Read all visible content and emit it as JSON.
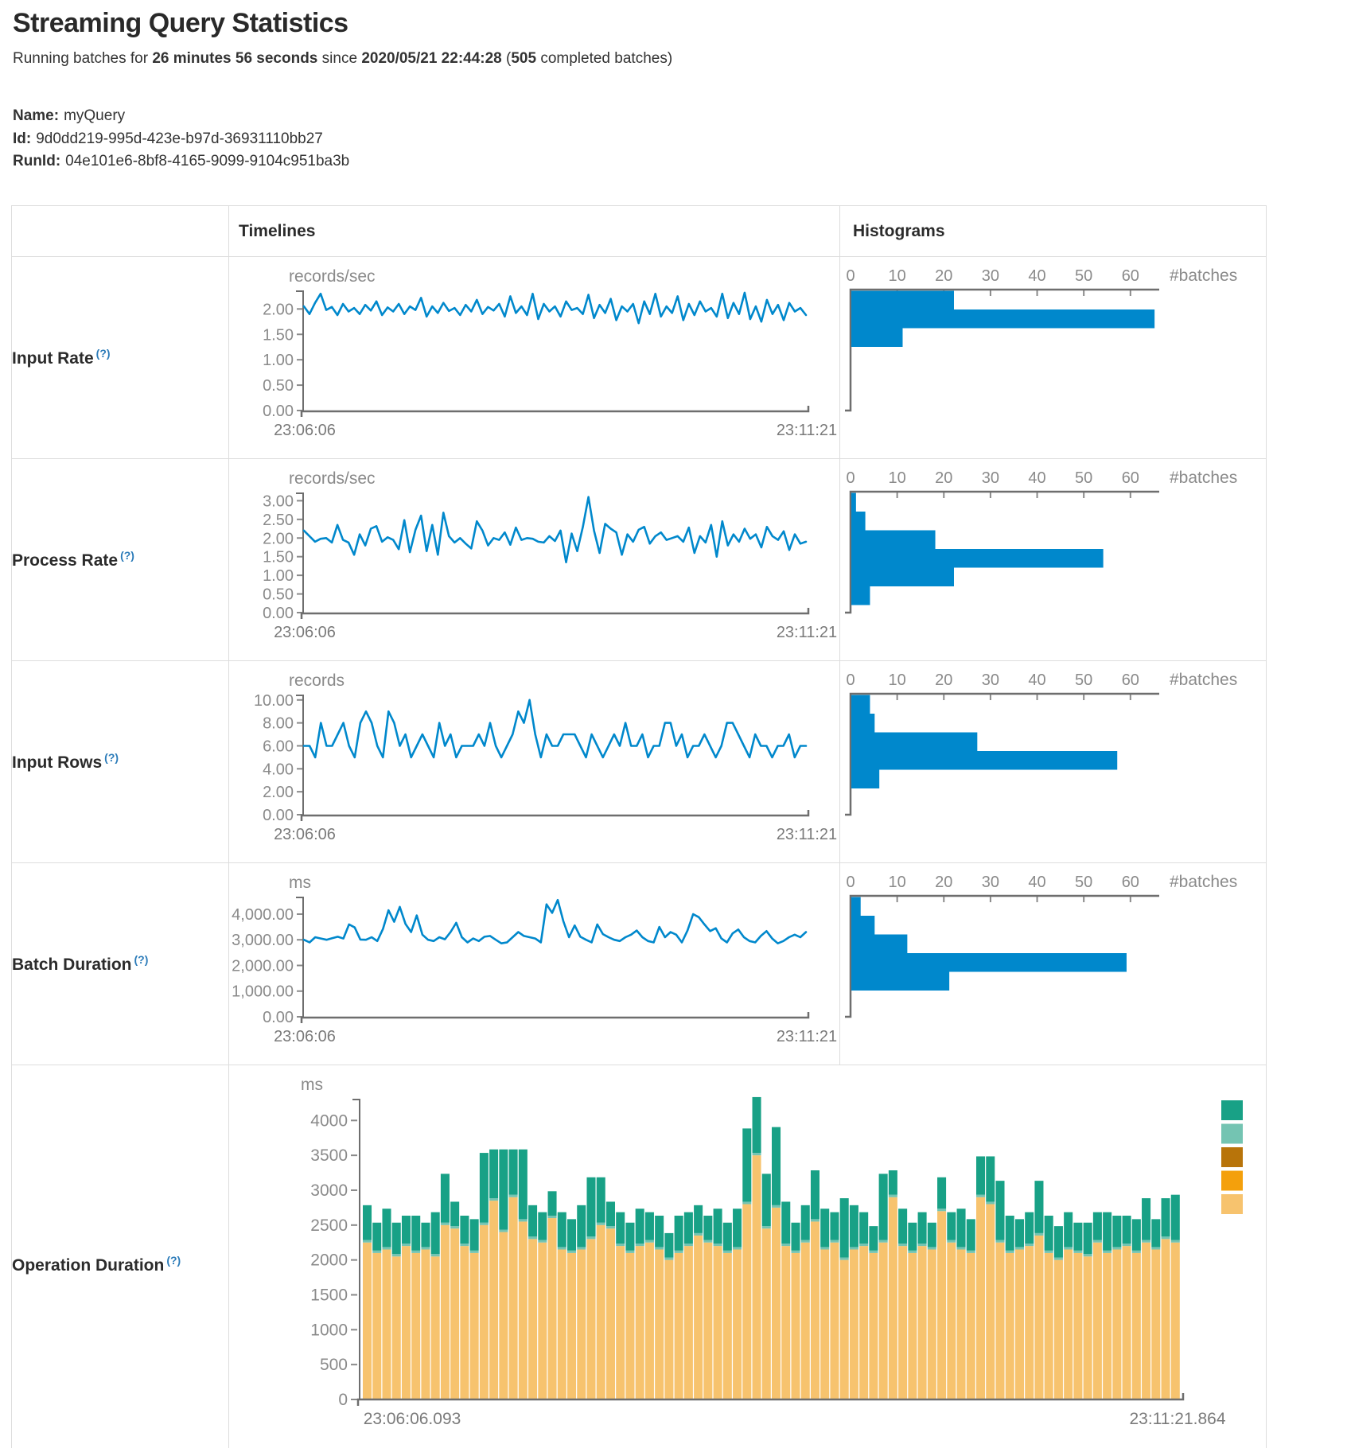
{
  "page": {
    "title": "Streaming Query Statistics",
    "running": {
      "prefix": "Running batches for ",
      "duration": "26 minutes 56 seconds",
      "mid": " since ",
      "start_time": "2020/05/21 22:44:28",
      "post": " (",
      "completed_batches": "505",
      "suffix": " completed batches)"
    },
    "name_label": "Name:",
    "name_value": "myQuery",
    "id_label": "Id:",
    "id_value": "9d0dd219-995d-423e-b97d-36931110bb27",
    "runid_label": "RunId:",
    "runid_value": "04e101e6-8bf8-4165-9099-9104c951ba3b"
  },
  "table": {
    "headers": {
      "timelines": "Timelines",
      "histograms": "Histograms"
    },
    "rows": [
      {
        "label": "Input Rate",
        "help": "(?)"
      },
      {
        "label": "Process Rate",
        "help": "(?)"
      },
      {
        "label": "Input Rows",
        "help": "(?)"
      },
      {
        "label": "Batch Duration",
        "help": "(?)"
      },
      {
        "label": "Operation Duration",
        "help": "(?)"
      }
    ]
  },
  "colors": {
    "accent_blue": "#0088cc",
    "help_link": "#2b7bb9",
    "axis_text": "#808080",
    "axis_line": "#6e6e6e",
    "table_border": "#dddddd"
  },
  "chart_data": [
    {
      "type": "line",
      "name": "input-rate-timeline",
      "unit": "records/sec",
      "x_start": "23:06:06",
      "x_end": "23:11:21",
      "y_max": 2.35,
      "color": "#0088cc",
      "y_ticks": [
        [
          "0.00",
          0
        ],
        [
          "0.50",
          0.5
        ],
        [
          "1.00",
          1
        ],
        [
          "1.50",
          1.5
        ],
        [
          "2.00",
          2
        ]
      ],
      "values": [
        2.05,
        1.9,
        2.12,
        2.3,
        1.98,
        2.04,
        1.88,
        2.1,
        1.95,
        2.02,
        1.9,
        2.08,
        1.97,
        2.15,
        1.88,
        2.03,
        1.95,
        2.1,
        1.9,
        2.05,
        1.98,
        2.22,
        1.85,
        2.05,
        1.92,
        2.12,
        1.96,
        2.02,
        1.88,
        2.08,
        1.95,
        2.18,
        1.9,
        2.04,
        1.97,
        2.1,
        1.85,
        2.25,
        1.92,
        2.05,
        1.88,
        2.3,
        1.8,
        2.1,
        1.95,
        2.05,
        1.85,
        2.15,
        1.98,
        2.02,
        1.9,
        2.28,
        1.82,
        2.08,
        1.92,
        2.2,
        1.78,
        2.05,
        1.95,
        2.1,
        1.72,
        2.15,
        1.9,
        2.3,
        1.85,
        2.05,
        1.92,
        2.25,
        1.78,
        2.1,
        1.88,
        2.15,
        1.95,
        2.02,
        1.85,
        2.3,
        1.82,
        2.12,
        1.9,
        2.32,
        1.8,
        2.05,
        1.75,
        2.18,
        1.9,
        2.08,
        1.78,
        2.12,
        1.95,
        2.02,
        1.88
      ]
    },
    {
      "type": "hbar",
      "name": "input-rate-histogram",
      "end_label": "#batches",
      "x_ticks": [
        0,
        10,
        20,
        30,
        40,
        50,
        60
      ],
      "x_max": 66,
      "color": "#0088cc",
      "values": [
        22,
        65,
        11
      ]
    },
    {
      "type": "line",
      "name": "process-rate-timeline",
      "unit": "records/sec",
      "x_start": "23:06:06",
      "x_end": "23:11:21",
      "y_max": 3.2,
      "color": "#0088cc",
      "y_ticks": [
        [
          "0.00",
          0
        ],
        [
          "0.50",
          0.5
        ],
        [
          "1.00",
          1
        ],
        [
          "1.50",
          1.5
        ],
        [
          "2.00",
          2
        ],
        [
          "2.50",
          2.5
        ],
        [
          "3.00",
          3
        ]
      ],
      "values": [
        2.2,
        2.05,
        1.9,
        1.98,
        2.0,
        1.88,
        2.35,
        1.95,
        1.88,
        1.55,
        2.1,
        1.8,
        2.25,
        2.32,
        1.9,
        2.02,
        1.95,
        1.7,
        2.48,
        1.62,
        2.22,
        2.6,
        1.65,
        2.35,
        1.55,
        2.68,
        2.05,
        1.88,
        2.0,
        1.85,
        1.72,
        2.45,
        2.2,
        1.8,
        2.0,
        1.95,
        2.15,
        1.82,
        2.28,
        1.95,
        2.0,
        1.98,
        1.9,
        1.88,
        2.05,
        1.92,
        2.2,
        1.35,
        2.12,
        1.65,
        2.3,
        3.1,
        2.2,
        1.6,
        2.38,
        2.25,
        2.15,
        1.55,
        2.1,
        1.9,
        2.22,
        2.3,
        1.85,
        2.05,
        2.15,
        1.95,
        2.0,
        2.05,
        1.9,
        2.28,
        1.6,
        2.05,
        1.88,
        2.35,
        1.5,
        2.45,
        1.8,
        2.1,
        1.9,
        2.25,
        1.98,
        2.1,
        1.75,
        2.3,
        2.05,
        1.95,
        2.18,
        1.68,
        2.1,
        1.85,
        1.9
      ]
    },
    {
      "type": "hbar",
      "name": "process-rate-histogram",
      "end_label": "#batches",
      "x_ticks": [
        0,
        10,
        20,
        30,
        40,
        50,
        60
      ],
      "x_max": 66,
      "color": "#0088cc",
      "values": [
        1,
        3,
        18,
        54,
        22,
        4
      ]
    },
    {
      "type": "line",
      "name": "input-rows-timeline",
      "unit": "records",
      "x_start": "23:06:06",
      "x_end": "23:11:21",
      "y_max": 10.4,
      "color": "#0088cc",
      "y_ticks": [
        [
          "0.00",
          0
        ],
        [
          "2.00",
          2
        ],
        [
          "4.00",
          4
        ],
        [
          "6.00",
          6
        ],
        [
          "8.00",
          8
        ],
        [
          "10.00",
          10
        ]
      ],
      "values": [
        6,
        6,
        5,
        8,
        6,
        6,
        7,
        8,
        6,
        5,
        8,
        9,
        8,
        6,
        5,
        9,
        8,
        6,
        7,
        5,
        6,
        7,
        6,
        5,
        8,
        6,
        7,
        5,
        6,
        6,
        6,
        7,
        6,
        8,
        6,
        5,
        6,
        7,
        9,
        8,
        10,
        7,
        5,
        7,
        6,
        6,
        7,
        7,
        7,
        6,
        5,
        7,
        6,
        5,
        6,
        7,
        6,
        8,
        6,
        6,
        7,
        5,
        6,
        6,
        8,
        8,
        6,
        7,
        5,
        6,
        6,
        7,
        6,
        5,
        6,
        8,
        8,
        7,
        6,
        5,
        7,
        6,
        6,
        5,
        6,
        6,
        7,
        5,
        6,
        6
      ]
    },
    {
      "type": "hbar",
      "name": "input-rows-histogram",
      "end_label": "#batches",
      "x_ticks": [
        0,
        10,
        20,
        30,
        40,
        50,
        60
      ],
      "x_max": 66,
      "color": "#0088cc",
      "values": [
        4,
        5,
        27,
        57,
        6
      ]
    },
    {
      "type": "line",
      "name": "batch-duration-timeline",
      "unit": "ms",
      "x_start": "23:06:06",
      "x_end": "23:11:21",
      "y_max": 4650,
      "color": "#0088cc",
      "y_ticks": [
        [
          "0.00",
          0
        ],
        [
          "1,000.00",
          1000
        ],
        [
          "2,000.00",
          2000
        ],
        [
          "3,000.00",
          3000
        ],
        [
          "4,000.00",
          4000
        ]
      ],
      "values": [
        3000,
        2900,
        3100,
        3050,
        3000,
        3060,
        3120,
        3050,
        3600,
        3480,
        3010,
        3000,
        3100,
        2950,
        3420,
        4150,
        3700,
        4280,
        3620,
        3300,
        3950,
        3200,
        3000,
        2950,
        3100,
        3020,
        3300,
        3660,
        3100,
        2900,
        3050,
        2950,
        3120,
        3150,
        3000,
        2860,
        2900,
        3100,
        3300,
        3150,
        3100,
        3050,
        2900,
        4380,
        4050,
        4550,
        3720,
        3100,
        3560,
        3120,
        3000,
        2900,
        3600,
        3220,
        3100,
        3000,
        2950,
        3100,
        3200,
        3360,
        3100,
        2950,
        2900,
        3500,
        3100,
        3300,
        3200,
        2900,
        3360,
        4000,
        3880,
        3600,
        3340,
        3450,
        3050,
        2900,
        3250,
        3400,
        3100,
        2950,
        2900,
        3150,
        3340,
        3050,
        2860,
        2950,
        3100,
        3200,
        3100,
        3300
      ]
    },
    {
      "type": "hbar",
      "name": "batch-duration-histogram",
      "end_label": "#batches",
      "x_ticks": [
        0,
        10,
        20,
        30,
        40,
        50,
        60
      ],
      "x_max": 66,
      "color": "#0088cc",
      "values": [
        2,
        5,
        12,
        59,
        21
      ]
    },
    {
      "type": "stacked",
      "name": "operation-duration",
      "unit": "ms",
      "x_start": "23:06:06.093",
      "x_end": "23:11:21.864",
      "y_max": 4300,
      "y_ticks": [
        [
          "0",
          0
        ],
        [
          "500",
          500
        ],
        [
          "1000",
          1000
        ],
        [
          "1500",
          1500
        ],
        [
          "2000",
          2000
        ],
        [
          "2500",
          2500
        ],
        [
          "3000",
          3000
        ],
        [
          "3500",
          3500
        ],
        [
          "4000",
          4000
        ]
      ],
      "legend_colors": [
        "#18a186",
        "#74c4b2",
        "#b8740a",
        "#f4a00c",
        "#f7c36e"
      ],
      "series_colors": {
        "base": "#f7c36e",
        "mid": "#74c4b2",
        "top": "#18a186"
      },
      "mid_value": 35,
      "bars": [
        [
          2250,
          500
        ],
        [
          2100,
          400
        ],
        [
          2150,
          550
        ],
        [
          2050,
          450
        ],
        [
          2200,
          400
        ],
        [
          2100,
          500
        ],
        [
          2150,
          350
        ],
        [
          2050,
          600
        ],
        [
          2500,
          700
        ],
        [
          2450,
          350
        ],
        [
          2200,
          400
        ],
        [
          2100,
          450
        ],
        [
          2500,
          1000
        ],
        [
          2850,
          700
        ],
        [
          2400,
          1150
        ],
        [
          2900,
          650
        ],
        [
          2550,
          1000
        ],
        [
          2300,
          450
        ],
        [
          2250,
          400
        ],
        [
          2600,
          350
        ],
        [
          2150,
          500
        ],
        [
          2100,
          450
        ],
        [
          2150,
          600
        ],
        [
          2300,
          850
        ],
        [
          2500,
          650
        ],
        [
          2450,
          350
        ],
        [
          2200,
          450
        ],
        [
          2100,
          400
        ],
        [
          2200,
          500
        ],
        [
          2250,
          400
        ],
        [
          2150,
          450
        ],
        [
          2000,
          350
        ],
        [
          2100,
          500
        ],
        [
          2200,
          450
        ],
        [
          2350,
          400
        ],
        [
          2250,
          350
        ],
        [
          2200,
          500
        ],
        [
          2100,
          400
        ],
        [
          2150,
          550
        ],
        [
          2800,
          1050
        ],
        [
          3500,
          800
        ],
        [
          2450,
          750
        ],
        [
          2750,
          1120
        ],
        [
          2200,
          600
        ],
        [
          2100,
          400
        ],
        [
          2250,
          500
        ],
        [
          2550,
          700
        ],
        [
          2150,
          550
        ],
        [
          2250,
          400
        ],
        [
          2000,
          850
        ],
        [
          2150,
          600
        ],
        [
          2200,
          450
        ],
        [
          2100,
          350
        ],
        [
          2250,
          950
        ],
        [
          2900,
          350
        ],
        [
          2200,
          500
        ],
        [
          2100,
          400
        ],
        [
          2200,
          450
        ],
        [
          2150,
          350
        ],
        [
          2700,
          450
        ],
        [
          2250,
          400
        ],
        [
          2150,
          550
        ],
        [
          2100,
          450
        ],
        [
          2900,
          550
        ],
        [
          2800,
          650
        ],
        [
          2250,
          850
        ],
        [
          2100,
          500
        ],
        [
          2150,
          400
        ],
        [
          2200,
          450
        ],
        [
          2350,
          750
        ],
        [
          2100,
          500
        ],
        [
          2000,
          450
        ],
        [
          2150,
          500
        ],
        [
          2100,
          400
        ],
        [
          2050,
          450
        ],
        [
          2250,
          400
        ],
        [
          2100,
          550
        ],
        [
          2150,
          450
        ],
        [
          2200,
          400
        ],
        [
          2100,
          450
        ],
        [
          2250,
          600
        ],
        [
          2150,
          400
        ],
        [
          2300,
          550
        ],
        [
          2250,
          650
        ]
      ]
    }
  ]
}
